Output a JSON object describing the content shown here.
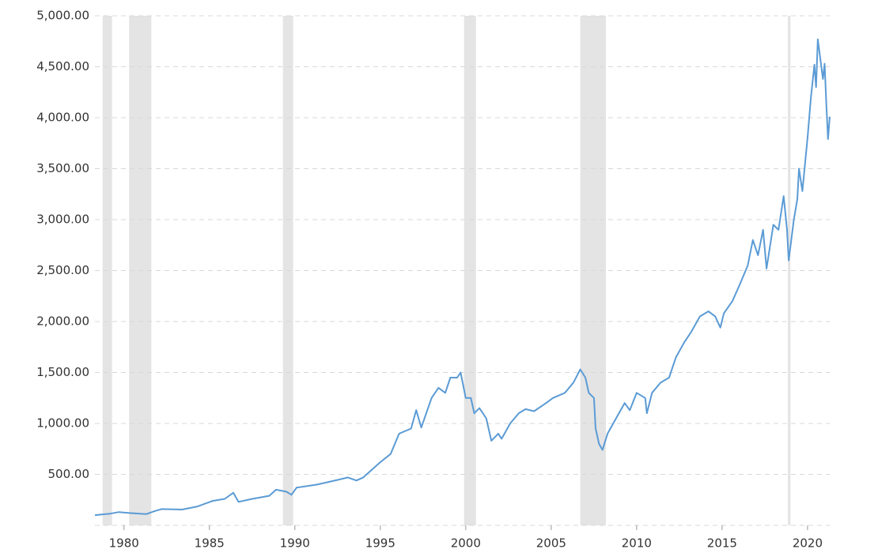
{
  "chart_data": {
    "type": "line",
    "color": "#5b9bd5",
    "grid": true,
    "xlim": [
      1978.3,
      2021.3
    ],
    "xticks": [
      1980,
      1985,
      1990,
      1995,
      2000,
      2005,
      2010,
      2015,
      2020
    ],
    "ylim": [
      0,
      5000
    ],
    "yticks": [
      {
        "value": 500,
        "label": "500.00"
      },
      {
        "value": 1000,
        "label": "1,000.00"
      },
      {
        "value": 1500,
        "label": "1,500.00"
      },
      {
        "value": 2000,
        "label": "2,000.00"
      },
      {
        "value": 2500,
        "label": "2,500.00"
      },
      {
        "value": 3000,
        "label": "3,000.00"
      },
      {
        "value": 3500,
        "label": "3,500.00"
      },
      {
        "value": 4000,
        "label": "4,000.00"
      },
      {
        "value": 4500,
        "label": "4,500.00"
      },
      {
        "value": 5000,
        "label": "5,000.00"
      }
    ],
    "shaded_ranges": [
      [
        1978.75,
        1979.3
      ],
      [
        1980.3,
        1981.6
      ],
      [
        1989.3,
        1989.9
      ],
      [
        1999.9,
        2000.6
      ],
      [
        2006.7,
        2008.2
      ],
      [
        2018.85,
        2019.0
      ]
    ],
    "shade_color": "#e4e4e4",
    "x": [
      1978.3,
      1979.2,
      1979.7,
      1980.4,
      1981.3,
      1981.8,
      1982.2,
      1983.4,
      1984.3,
      1985.2,
      1985.9,
      1986.4,
      1986.7,
      1987.5,
      1988.5,
      1988.9,
      1989.5,
      1989.8,
      1990.1,
      1991.3,
      1992.6,
      1993.1,
      1993.6,
      1994.0,
      1995.0,
      1995.6,
      1996.1,
      1996.8,
      1997.1,
      1997.4,
      1998.0,
      1998.4,
      1998.8,
      1999.1,
      1999.5,
      1999.7,
      2000.0,
      2000.3,
      2000.5,
      2000.8,
      2001.2,
      2001.5,
      2001.9,
      2002.1,
      2002.6,
      2003.1,
      2003.5,
      2004.0,
      2004.7,
      2005.1,
      2005.8,
      2006.3,
      2006.7,
      2007.0,
      2007.2,
      2007.5,
      2007.6,
      2007.8,
      2008.0,
      2008.3,
      2008.8,
      2009.3,
      2009.6,
      2010.0,
      2010.5,
      2010.6,
      2010.9,
      2011.4,
      2011.9,
      2012.3,
      2012.8,
      2013.2,
      2013.7,
      2014.2,
      2014.6,
      2014.9,
      2015.1,
      2015.6,
      2016.0,
      2016.5,
      2016.8,
      2017.1,
      2017.4,
      2017.6,
      2018.0,
      2018.3,
      2018.6,
      2018.8,
      2018.9,
      2019.2,
      2019.4,
      2019.5,
      2019.7,
      2020.0,
      2020.2,
      2020.4,
      2020.5,
      2020.6,
      2020.9,
      2021.0,
      2021.1,
      2021.2,
      2021.3
    ],
    "values": [
      100,
      115,
      130,
      120,
      110,
      140,
      160,
      155,
      185,
      240,
      260,
      320,
      230,
      260,
      290,
      350,
      330,
      300,
      370,
      400,
      450,
      470,
      440,
      470,
      620,
      700,
      900,
      950,
      1130,
      960,
      1250,
      1350,
      1300,
      1450,
      1450,
      1500,
      1250,
      1250,
      1100,
      1150,
      1050,
      830,
      900,
      850,
      1000,
      1100,
      1140,
      1120,
      1200,
      1250,
      1300,
      1400,
      1530,
      1450,
      1300,
      1250,
      950,
      800,
      740,
      900,
      1050,
      1200,
      1130,
      1300,
      1250,
      1100,
      1300,
      1400,
      1450,
      1650,
      1800,
      1900,
      2050,
      2100,
      2050,
      1940,
      2080,
      2200,
      2350,
      2550,
      2800,
      2650,
      2900,
      2520,
      2950,
      2900,
      3230,
      2900,
      2600,
      3000,
      3200,
      3500,
      3280,
      3800,
      4200,
      4520,
      4300,
      4770,
      4380,
      4530,
      4130,
      3790,
      4010
    ]
  }
}
